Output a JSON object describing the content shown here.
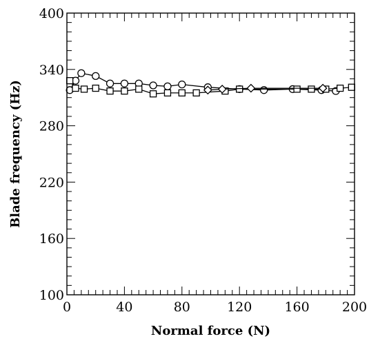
{
  "chart_data": {
    "type": "line",
    "title": "",
    "xlabel": "Normal force (N)",
    "ylabel": "Blade frequency (Hz)",
    "xlim": [
      0,
      200
    ],
    "ylim": [
      100,
      400
    ],
    "xticks": [
      0,
      40,
      80,
      120,
      160,
      200
    ],
    "yticks": [
      100,
      160,
      220,
      280,
      340,
      400
    ],
    "x_minor_step": 5,
    "y_minor_step": 10,
    "grid": false,
    "legend": "none",
    "series": [
      {
        "marker": "circle",
        "x": [
          2,
          6,
          10,
          20,
          30,
          40,
          50,
          60,
          70,
          80,
          98,
          120,
          137,
          157,
          177,
          187
        ],
        "y": [
          318,
          328,
          336,
          333,
          325,
          325,
          325,
          323,
          322,
          324,
          321,
          319,
          318,
          319,
          318,
          317
        ]
      },
      {
        "marker": "square",
        "x": [
          2,
          6,
          12,
          20,
          30,
          40,
          50,
          60,
          70,
          80,
          90,
          110,
          120,
          160,
          170,
          180,
          190,
          198
        ],
        "y": [
          328,
          320,
          319,
          320,
          317,
          317,
          319,
          314,
          315,
          315,
          315,
          317,
          319,
          319,
          319,
          319,
          320,
          321
        ]
      },
      {
        "marker": "diamond",
        "x": [
          98,
          108,
          128,
          178
        ],
        "y": [
          318,
          319,
          320,
          320
        ]
      }
    ]
  }
}
